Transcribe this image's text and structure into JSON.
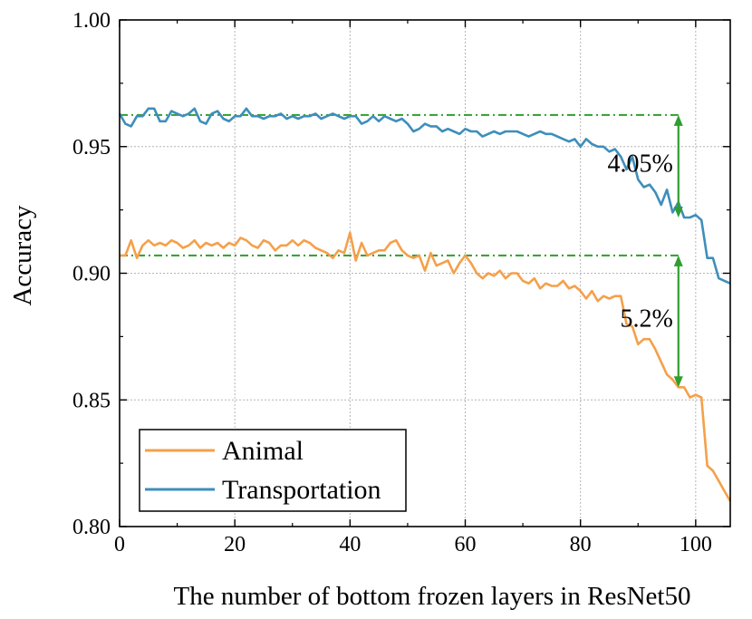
{
  "chart_data": {
    "type": "line",
    "xlabel": "The number of bottom frozen layers in ResNet50",
    "ylabel": "Accuracy",
    "xlim": [
      0,
      106
    ],
    "ylim": [
      0.8,
      1.0
    ],
    "xticks": [
      0,
      20,
      40,
      60,
      80,
      100
    ],
    "xtick_labels": [
      "0",
      "20",
      "40",
      "60",
      "80",
      "100"
    ],
    "yticks": [
      0.8,
      0.85,
      0.9,
      0.95,
      1.0
    ],
    "ytick_labels": [
      "0.80",
      "0.85",
      "0.90",
      "0.95",
      "1.00"
    ],
    "grid": true,
    "legend_position": "bottom-left",
    "series": [
      {
        "name": "Animal",
        "color": "#F5A04A",
        "x": [
          0,
          1,
          2,
          3,
          4,
          5,
          6,
          7,
          8,
          9,
          10,
          11,
          12,
          13,
          14,
          15,
          16,
          17,
          18,
          19,
          20,
          21,
          22,
          23,
          24,
          25,
          26,
          27,
          28,
          29,
          30,
          31,
          32,
          33,
          34,
          35,
          36,
          37,
          38,
          39,
          40,
          41,
          42,
          43,
          44,
          45,
          46,
          47,
          48,
          49,
          50,
          51,
          52,
          53,
          54,
          55,
          56,
          57,
          58,
          59,
          60,
          61,
          62,
          63,
          64,
          65,
          66,
          67,
          68,
          69,
          70,
          71,
          72,
          73,
          74,
          75,
          76,
          77,
          78,
          79,
          80,
          81,
          82,
          83,
          84,
          85,
          86,
          87,
          88,
          89,
          90,
          91,
          92,
          93,
          94,
          95,
          96,
          97,
          98,
          99,
          100,
          101,
          102,
          103,
          104,
          105,
          106
        ],
        "values": [
          0.907,
          0.907,
          0.913,
          0.906,
          0.911,
          0.913,
          0.911,
          0.912,
          0.911,
          0.913,
          0.912,
          0.91,
          0.911,
          0.913,
          0.91,
          0.912,
          0.911,
          0.912,
          0.91,
          0.912,
          0.911,
          0.914,
          0.913,
          0.911,
          0.91,
          0.913,
          0.912,
          0.909,
          0.911,
          0.911,
          0.913,
          0.911,
          0.913,
          0.912,
          0.91,
          0.909,
          0.908,
          0.906,
          0.909,
          0.908,
          0.916,
          0.905,
          0.912,
          0.907,
          0.908,
          0.909,
          0.909,
          0.912,
          0.913,
          0.909,
          0.907,
          0.906,
          0.907,
          0.901,
          0.908,
          0.903,
          0.904,
          0.905,
          0.9,
          0.904,
          0.907,
          0.904,
          0.9,
          0.898,
          0.9,
          0.899,
          0.901,
          0.898,
          0.9,
          0.9,
          0.897,
          0.896,
          0.898,
          0.894,
          0.896,
          0.895,
          0.895,
          0.897,
          0.894,
          0.895,
          0.893,
          0.89,
          0.893,
          0.889,
          0.891,
          0.89,
          0.891,
          0.891,
          0.88,
          0.879,
          0.872,
          0.874,
          0.874,
          0.87,
          0.865,
          0.86,
          0.858,
          0.855,
          0.855,
          0.851,
          0.852,
          0.851,
          0.824,
          0.822,
          0.818,
          0.814,
          0.81
        ]
      },
      {
        "name": "Transportation",
        "color": "#3E8EBC",
        "x": [
          0,
          1,
          2,
          3,
          4,
          5,
          6,
          7,
          8,
          9,
          10,
          11,
          12,
          13,
          14,
          15,
          16,
          17,
          18,
          19,
          20,
          21,
          22,
          23,
          24,
          25,
          26,
          27,
          28,
          29,
          30,
          31,
          32,
          33,
          34,
          35,
          36,
          37,
          38,
          39,
          40,
          41,
          42,
          43,
          44,
          45,
          46,
          47,
          48,
          49,
          50,
          51,
          52,
          53,
          54,
          55,
          56,
          57,
          58,
          59,
          60,
          61,
          62,
          63,
          64,
          65,
          66,
          67,
          68,
          69,
          70,
          71,
          72,
          73,
          74,
          75,
          76,
          77,
          78,
          79,
          80,
          81,
          82,
          83,
          84,
          85,
          86,
          87,
          88,
          89,
          90,
          91,
          92,
          93,
          94,
          95,
          96,
          97,
          98,
          99,
          100,
          101,
          102,
          103,
          104,
          105,
          106
        ],
        "values": [
          0.963,
          0.959,
          0.958,
          0.962,
          0.962,
          0.965,
          0.965,
          0.96,
          0.96,
          0.964,
          0.963,
          0.962,
          0.963,
          0.965,
          0.96,
          0.959,
          0.963,
          0.964,
          0.961,
          0.96,
          0.962,
          0.962,
          0.965,
          0.962,
          0.962,
          0.961,
          0.962,
          0.962,
          0.963,
          0.961,
          0.962,
          0.961,
          0.962,
          0.962,
          0.963,
          0.961,
          0.962,
          0.963,
          0.962,
          0.961,
          0.962,
          0.962,
          0.959,
          0.96,
          0.962,
          0.96,
          0.962,
          0.961,
          0.96,
          0.961,
          0.959,
          0.956,
          0.957,
          0.959,
          0.958,
          0.958,
          0.956,
          0.957,
          0.956,
          0.955,
          0.957,
          0.956,
          0.956,
          0.954,
          0.955,
          0.956,
          0.955,
          0.956,
          0.956,
          0.956,
          0.955,
          0.954,
          0.955,
          0.956,
          0.955,
          0.955,
          0.954,
          0.953,
          0.952,
          0.953,
          0.95,
          0.953,
          0.951,
          0.95,
          0.95,
          0.948,
          0.949,
          0.946,
          0.941,
          0.946,
          0.937,
          0.934,
          0.935,
          0.932,
          0.927,
          0.933,
          0.924,
          0.928,
          0.922,
          0.922,
          0.923,
          0.921,
          0.906,
          0.906,
          0.898,
          0.897,
          0.896
        ]
      }
    ],
    "annotations": [
      {
        "label": "4.05%",
        "x": 97,
        "y_top": 0.9625,
        "y_bottom": 0.922
      },
      {
        "label": "5.2%",
        "x": 97,
        "y_top": 0.907,
        "y_bottom": 0.855
      }
    ],
    "reference_color": "#2E9E2E"
  }
}
